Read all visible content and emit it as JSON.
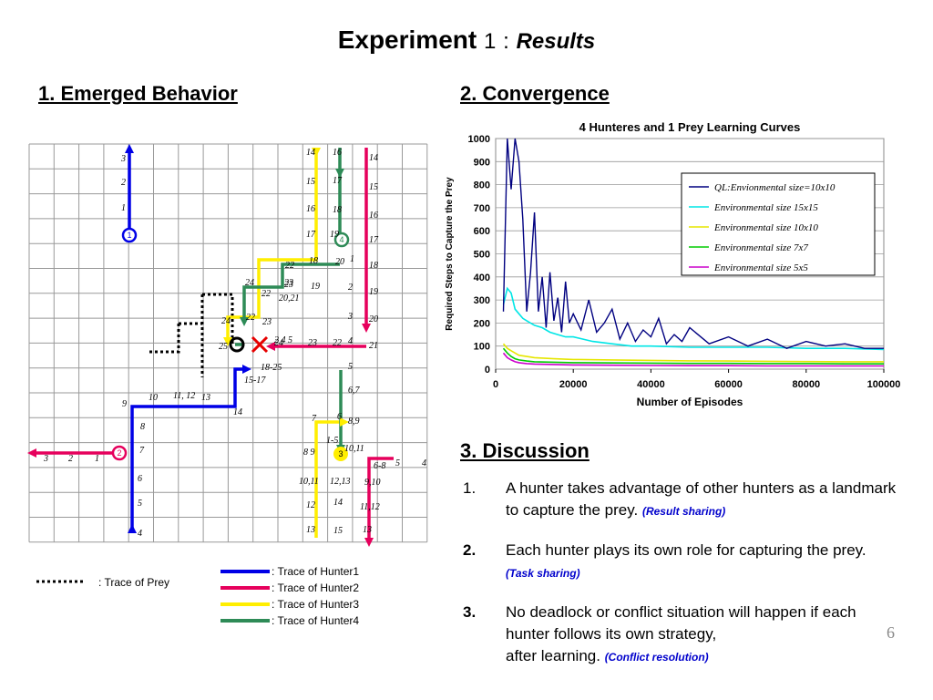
{
  "slide": {
    "title_main": "Experiment",
    "title_num": "1",
    "title_colon": ":",
    "title_results": "Results",
    "page_number": "6"
  },
  "sections": {
    "behavior": "1. Emerged Behavior",
    "convergence": "2. Convergence",
    "discussion": "3. Discussion"
  },
  "behavior_legend": {
    "prey": ": Trace of Prey",
    "hunter1": ": Trace of Hunter1",
    "hunter2": ": Trace of Hunter2",
    "hunter3": ": Trace of Hunter3",
    "hunter4": ": Trace of Hunter4",
    "colors": {
      "hunter1": "#0000e6",
      "hunter2": "#e6005c",
      "hunter3": "#ffee00",
      "hunter4": "#2e8b57",
      "prey": "#000000"
    }
  },
  "grid_labels": {
    "h1": [
      "3",
      "2",
      "1",
      "9",
      "10",
      "11,\n12",
      "13",
      "14",
      "8",
      "7",
      "6",
      "5",
      "4",
      "18-25",
      "15-17",
      "2 4\n5"
    ],
    "h2": [
      "3",
      "2",
      "1",
      "14",
      "15",
      "16",
      "17",
      "18",
      "19",
      "20",
      "21",
      "22",
      "23",
      "4",
      "5",
      "6,7",
      "8,9",
      "10,11",
      "6-8",
      "5",
      "4",
      "9,10",
      "11,12",
      "13"
    ],
    "h3": [
      "14",
      "15",
      "16",
      "17",
      "18",
      "19",
      "20,21",
      "22",
      "23",
      "24",
      "22",
      "23",
      "24",
      "25",
      "7",
      "6",
      "1-5",
      "8\n9",
      "10,11",
      "12",
      "13"
    ],
    "h4": [
      "16",
      "17",
      "18",
      "19",
      "20",
      "1",
      "2",
      "3",
      "22",
      "23",
      "24",
      "12,13",
      "14",
      "15"
    ],
    "markers": [
      "1",
      "2",
      "3",
      "4"
    ]
  },
  "discussion": [
    {
      "num": "1.",
      "text": "A hunter takes advantage of other  hunters as a landmark to capture the prey.",
      "note": "(Result sharing)"
    },
    {
      "num": "2.",
      "text": "Each hunter plays its own role for capturing the prey.",
      "note": "(Task sharing)"
    },
    {
      "num": "3.",
      "text": "No deadlock or conflict situation will  happen if each hunter follows its own strategy,",
      "text2": "after  learning.",
      "note": "(Conflict resolution)"
    }
  ],
  "chart_data": {
    "type": "line",
    "title": "4 Hunteres and 1 Prey Learning Curves",
    "xlabel": "Number of Episodes",
    "ylabel": "Required Steps to Capture the Prey",
    "xlim": [
      0,
      100000
    ],
    "ylim": [
      0,
      1000
    ],
    "xticks": [
      "0",
      "20000",
      "40000",
      "60000",
      "80000",
      "100000"
    ],
    "yticks": [
      "0",
      "100",
      "200",
      "300",
      "400",
      "500",
      "600",
      "700",
      "800",
      "900",
      "1000"
    ],
    "grid": true,
    "legend_position": "right",
    "series": [
      {
        "name": "QL:Envionmental size=10x10",
        "color": "#000080",
        "x": [
          2000,
          3000,
          4000,
          5000,
          6000,
          7000,
          8000,
          9000,
          10000,
          11000,
          12000,
          13000,
          14000,
          15000,
          16000,
          17000,
          18000,
          19000,
          20000,
          22000,
          24000,
          26000,
          28000,
          30000,
          32000,
          34000,
          36000,
          38000,
          40000,
          42000,
          44000,
          46000,
          48000,
          50000,
          55000,
          60000,
          65000,
          70000,
          75000,
          80000,
          85000,
          90000,
          95000,
          100000
        ],
        "y": [
          250,
          1000,
          780,
          1000,
          900,
          650,
          250,
          420,
          680,
          250,
          400,
          180,
          420,
          210,
          310,
          160,
          380,
          200,
          240,
          170,
          300,
          160,
          200,
          260,
          130,
          200,
          120,
          170,
          140,
          220,
          110,
          150,
          120,
          180,
          110,
          140,
          100,
          130,
          90,
          120,
          100,
          110,
          90,
          90
        ]
      },
      {
        "name": "Environmental size 15x15",
        "color": "#00e6e6",
        "x": [
          2000,
          3000,
          4000,
          5000,
          6000,
          7000,
          8000,
          9000,
          10000,
          12000,
          14000,
          16000,
          18000,
          20000,
          25000,
          30000,
          35000,
          40000,
          50000,
          60000,
          70000,
          80000,
          90000,
          100000
        ],
        "y": [
          280,
          350,
          330,
          260,
          240,
          220,
          210,
          200,
          190,
          180,
          160,
          150,
          140,
          140,
          120,
          110,
          100,
          100,
          95,
          95,
          95,
          90,
          90,
          85
        ]
      },
      {
        "name": "Environmental size 10x10",
        "color": "#e6e600",
        "x": [
          2000,
          3000,
          4000,
          5000,
          6000,
          8000,
          10000,
          15000,
          20000,
          30000,
          40000,
          50000,
          60000,
          70000,
          80000,
          90000,
          100000
        ],
        "y": [
          110,
          90,
          80,
          70,
          60,
          55,
          50,
          45,
          42,
          40,
          38,
          36,
          35,
          34,
          33,
          32,
          32
        ]
      },
      {
        "name": "Environmental size 7x7",
        "color": "#00cc00",
        "x": [
          2000,
          3000,
          4000,
          5000,
          6000,
          8000,
          10000,
          15000,
          20000,
          30000,
          40000,
          50000,
          60000,
          70000,
          80000,
          90000,
          100000
        ],
        "y": [
          90,
          70,
          55,
          45,
          40,
          35,
          32,
          30,
          28,
          27,
          26,
          25,
          25,
          24,
          24,
          23,
          23
        ]
      },
      {
        "name": "Environmental size 5x5",
        "color": "#cc00cc",
        "x": [
          2000,
          3000,
          4000,
          5000,
          6000,
          8000,
          10000,
          15000,
          20000,
          30000,
          40000,
          50000,
          60000,
          70000,
          80000,
          90000,
          100000
        ],
        "y": [
          70,
          50,
          40,
          32,
          28,
          24,
          22,
          20,
          18,
          17,
          16,
          15,
          15,
          14,
          14,
          14,
          14
        ]
      }
    ]
  }
}
